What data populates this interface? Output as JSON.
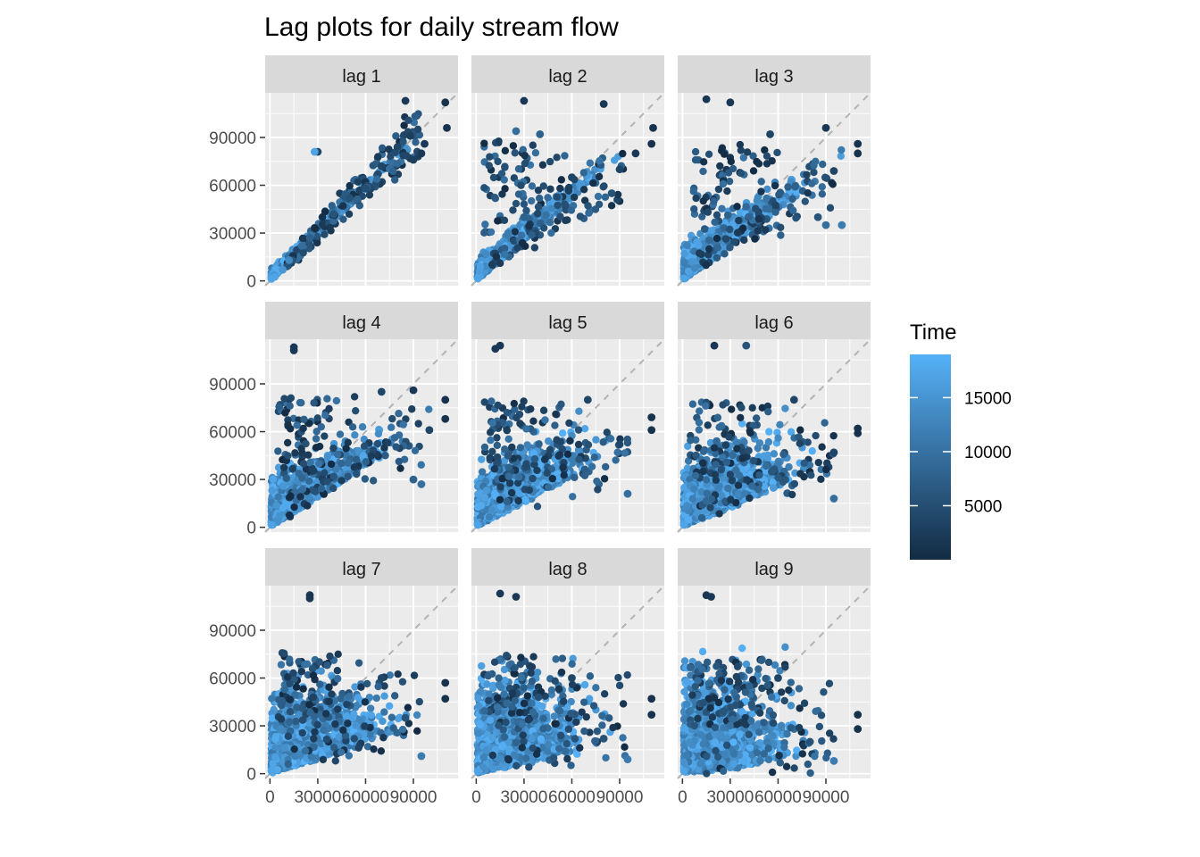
{
  "chart_data": {
    "type": "scatter",
    "title": "Lag plots for daily stream flow",
    "facets": [
      "lag 1",
      "lag 2",
      "lag 3",
      "lag 4",
      "lag 5",
      "lag 6",
      "lag 7",
      "lag 8",
      "lag 9"
    ],
    "x_ticks": [
      0,
      30000,
      60000,
      90000
    ],
    "x_tick_labels": [
      "0",
      "30000",
      "60000",
      "90000"
    ],
    "y_ticks": [
      0,
      30000,
      60000,
      90000
    ],
    "y_tick_labels": [
      "0",
      "30000",
      "60000",
      "90000"
    ],
    "xlim": [
      -3000,
      118000
    ],
    "ylim": [
      -3000,
      118000
    ],
    "reference_line": "y = x (dashed)",
    "grid": true,
    "legend": {
      "title": "Time",
      "position": "right",
      "type": "colorbar",
      "range": [
        1,
        19000
      ],
      "ticks": [
        5000,
        10000,
        15000
      ],
      "tick_labels": [
        "5000",
        "10000",
        "15000"
      ],
      "low_color": "#132b43",
      "high_color": "#56b1f7"
    },
    "series_summary": [
      {
        "facet": "lag 1",
        "points": [
          [
            1000,
            1500,
            0.9
          ],
          [
            3000,
            2500,
            0.9
          ],
          [
            8000,
            7000,
            0.8
          ],
          [
            12000,
            13000,
            0.7
          ],
          [
            20000,
            22000,
            0.5
          ],
          [
            25000,
            27000,
            0.4
          ],
          [
            40000,
            42000,
            0.3
          ],
          [
            60000,
            58000,
            0.25
          ],
          [
            80000,
            84000,
            0.2
          ],
          [
            88000,
            91000,
            0.15
          ],
          [
            110000,
            112000,
            0.05
          ],
          [
            111000,
            96000,
            0.05
          ],
          [
            85000,
            113000,
            0.1
          ],
          [
            97000,
            86000,
            0.1
          ],
          [
            95000,
            80000,
            0.1
          ],
          [
            90000,
            76000,
            0.15
          ],
          [
            30000,
            81000,
            0.2
          ],
          [
            28000,
            81000,
            0.9
          ],
          [
            50000,
            52000,
            0.3
          ],
          [
            70000,
            72000,
            0.2
          ]
        ]
      },
      {
        "facet": "lag 2",
        "points": [
          [
            1000,
            1500,
            0.9
          ],
          [
            20000,
            30000,
            0.6
          ],
          [
            30000,
            40000,
            0.4
          ],
          [
            60000,
            65000,
            0.2
          ],
          [
            111000,
            96000,
            0.05
          ],
          [
            110000,
            86000,
            0.05
          ],
          [
            80000,
            111000,
            0.1
          ],
          [
            30000,
            113000,
            0.1
          ],
          [
            25000,
            94000,
            0.5
          ],
          [
            40000,
            92000,
            0.4
          ],
          [
            100000,
            80000,
            0.1
          ],
          [
            90000,
            70000,
            0.2
          ],
          [
            85000,
            55000,
            0.3
          ]
        ]
      },
      {
        "facet": "lag 3",
        "points": [
          [
            1000,
            1500,
            0.9
          ],
          [
            15000,
            114000,
            0.1
          ],
          [
            30000,
            112000,
            0.1
          ],
          [
            55000,
            92000,
            0.2
          ],
          [
            90000,
            96000,
            0.1
          ],
          [
            110000,
            86000,
            0.05
          ],
          [
            110000,
            80000,
            0.05
          ],
          [
            95000,
            69000,
            0.2
          ],
          [
            85000,
            40000,
            0.3
          ],
          [
            90000,
            35000,
            0.5
          ],
          [
            100000,
            35000,
            0.6
          ]
        ]
      },
      {
        "facet": "lag 4",
        "points": [
          [
            1000,
            1500,
            0.9
          ],
          [
            15000,
            113000,
            0.1
          ],
          [
            15000,
            111000,
            0.1
          ],
          [
            90000,
            86000,
            0.1
          ],
          [
            110000,
            80000,
            0.05
          ],
          [
            110000,
            68000,
            0.05
          ],
          [
            100000,
            61000,
            0.2
          ],
          [
            95000,
            27000,
            0.5
          ],
          [
            90000,
            30000,
            0.4
          ],
          [
            70000,
            85000,
            0.2
          ]
        ]
      },
      {
        "facet": "lag 5",
        "points": [
          [
            1000,
            1500,
            0.9
          ],
          [
            15000,
            114000,
            0.1
          ],
          [
            12000,
            112000,
            0.1
          ],
          [
            110000,
            69000,
            0.05
          ],
          [
            110000,
            61000,
            0.05
          ],
          [
            95000,
            21000,
            0.5
          ],
          [
            90000,
            52000,
            0.2
          ],
          [
            70000,
            80000,
            0.2
          ]
        ]
      },
      {
        "facet": "lag 6",
        "points": [
          [
            1000,
            1500,
            0.9
          ],
          [
            20000,
            114000,
            0.1
          ],
          [
            40000,
            114000,
            0.3
          ],
          [
            110000,
            62000,
            0.05
          ],
          [
            110000,
            59000,
            0.05
          ],
          [
            95000,
            47000,
            0.2
          ],
          [
            95000,
            18000,
            0.5
          ],
          [
            70000,
            80000,
            0.2
          ]
        ]
      },
      {
        "facet": "lag 7",
        "points": [
          [
            1000,
            1500,
            0.9
          ],
          [
            25000,
            112000,
            0.1
          ],
          [
            25000,
            110000,
            0.1
          ],
          [
            110000,
            57000,
            0.05
          ],
          [
            110000,
            47000,
            0.05
          ],
          [
            95000,
            11000,
            0.6
          ],
          [
            85000,
            35000,
            0.3
          ],
          [
            70000,
            60000,
            0.2
          ]
        ]
      },
      {
        "facet": "lag 8",
        "points": [
          [
            1000,
            1500,
            0.9
          ],
          [
            15000,
            113000,
            0.1
          ],
          [
            25000,
            111000,
            0.1
          ],
          [
            110000,
            47000,
            0.05
          ],
          [
            110000,
            37000,
            0.05
          ],
          [
            95000,
            9000,
            0.6
          ],
          [
            80000,
            22000,
            0.3
          ],
          [
            60000,
            60000,
            0.2
          ]
        ]
      },
      {
        "facet": "lag 9",
        "points": [
          [
            1000,
            1500,
            0.9
          ],
          [
            15000,
            112000,
            0.1
          ],
          [
            18000,
            111000,
            0.1
          ],
          [
            110000,
            37000,
            0.05
          ],
          [
            110000,
            28000,
            0.05
          ],
          [
            95000,
            8000,
            0.6
          ],
          [
            80000,
            20000,
            0.3
          ],
          [
            60000,
            60000,
            0.2
          ]
        ]
      }
    ]
  }
}
